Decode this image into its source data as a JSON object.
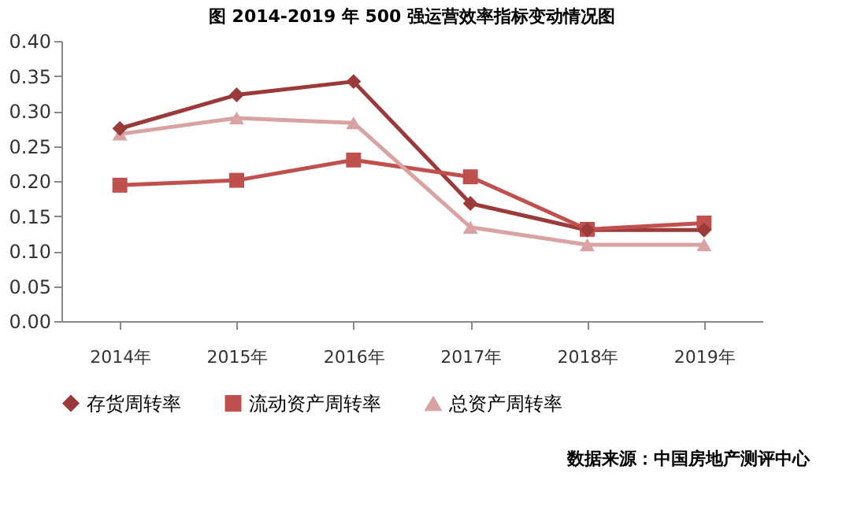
{
  "chart_data": {
    "type": "line",
    "title": "图 2014-2019 年 500 强运营效率指标变动情况图",
    "categories": [
      "2014年",
      "2015年",
      "2016年",
      "2017年",
      "2018年",
      "2019年"
    ],
    "series": [
      {
        "name": "存货周转率",
        "color": "#9b3a3a",
        "marker": "diamond",
        "values": [
          0.275,
          0.323,
          0.342,
          0.168,
          0.13,
          0.13
        ]
      },
      {
        "name": "流动资产周转率",
        "color": "#c0504d",
        "marker": "square",
        "values": [
          0.194,
          0.201,
          0.23,
          0.206,
          0.131,
          0.14
        ]
      },
      {
        "name": "总资产周转率",
        "color": "#d9a3a3",
        "marker": "triangle",
        "values": [
          0.267,
          0.29,
          0.283,
          0.134,
          0.109,
          0.109
        ]
      }
    ],
    "ylim": [
      0,
      0.4
    ],
    "yticks": [
      {
        "value": 0,
        "label": "0.00"
      },
      {
        "value": 0.05,
        "label": "0.05"
      },
      {
        "value": 0.1,
        "label": "0.10"
      },
      {
        "value": 0.15,
        "label": "0.15"
      },
      {
        "value": 0.2,
        "label": "0.20"
      },
      {
        "value": 0.25,
        "label": "0.25"
      },
      {
        "value": 0.3,
        "label": "0.30"
      },
      {
        "value": 0.35,
        "label": "0.35"
      },
      {
        "value": 0.4,
        "label": "0.40"
      }
    ],
    "grid": false,
    "legend": "bottom",
    "line_style": "solid",
    "annotations": [
      "数据来源：中国房地产测评中心"
    ]
  }
}
